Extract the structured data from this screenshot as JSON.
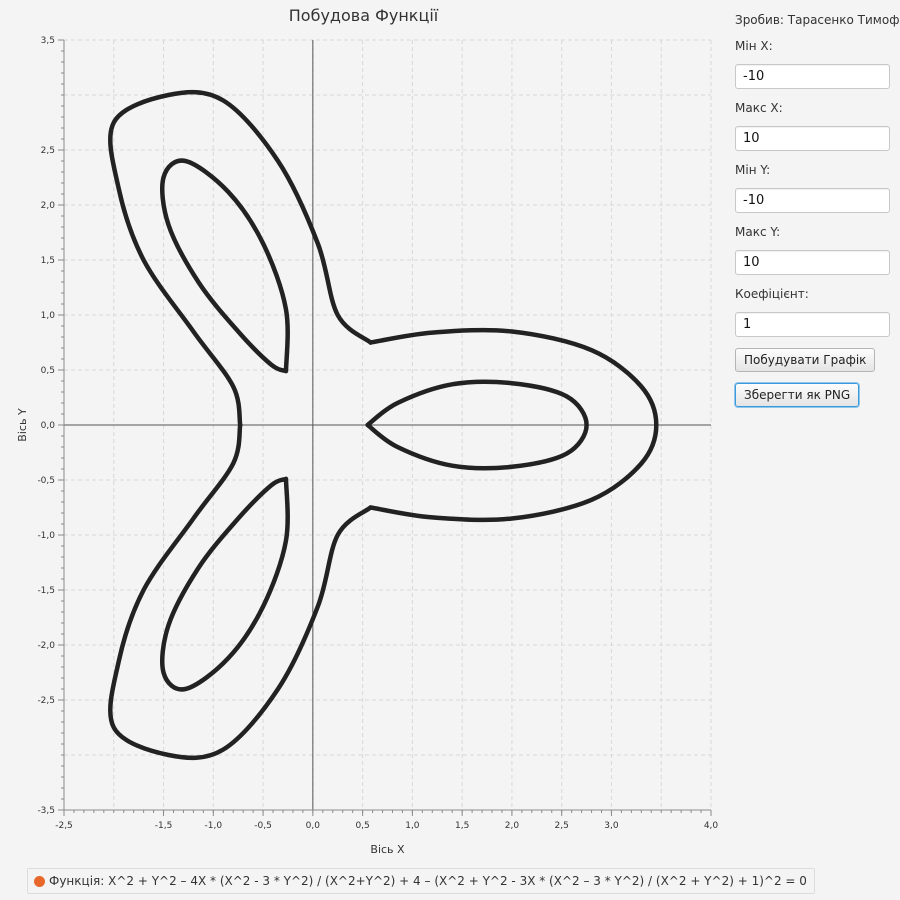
{
  "chart_data": {
    "type": "line",
    "title": "Побудова Функції",
    "xlabel": "Вісь X",
    "ylabel": "Вісь Y",
    "xlim": [
      -2.5,
      4.0
    ],
    "ylim": [
      -3.5,
      3.5
    ],
    "x_ticks": [
      "-2,5",
      "-1,5",
      "-1,0",
      "-0,5",
      "0,0",
      "0,5",
      "1,0",
      "1,5",
      "2,0",
      "2,5",
      "3,0",
      "4,0"
    ],
    "x_tick_values": [
      -2.5,
      -1.5,
      -1.0,
      -0.5,
      0.0,
      0.5,
      1.0,
      1.5,
      2.0,
      2.5,
      3.0,
      4.0
    ],
    "y_ticks": [
      "3,5",
      "2,5",
      "2,0",
      "1,5",
      "1,0",
      "0,5",
      "0,0",
      "-0,5",
      "-1,0",
      "-1,5",
      "-2,0",
      "-2,5",
      "-3,5"
    ],
    "y_tick_values": [
      3.5,
      2.5,
      2.0,
      1.5,
      1.0,
      0.5,
      0.0,
      -0.5,
      -1.0,
      -1.5,
      -2.0,
      -2.5,
      -3.5
    ],
    "grid": true,
    "legend_position": "bottom-left",
    "series": [
      {
        "name": "Функція: X^2 + Y^2 – 4X * (X^2 - 3 * Y^2) / (X^2+Y^2) + 4 – (X^2 + Y^2 - 3X * (X^2 – 3 * Y^2) / (X^2 + Y^2) + 1)^2 = 0",
        "color": "#222222",
        "legend_color": "#e8672a",
        "curves": [
          {
            "id": "outer-loop-right",
            "points": [
              [
                0.58,
                0.75
              ],
              [
                1.2,
                0.84
              ],
              [
                2.0,
                0.85
              ],
              [
                2.8,
                0.68
              ],
              [
                3.3,
                0.35
              ],
              [
                3.45,
                0.0
              ],
              [
                3.3,
                -0.35
              ],
              [
                2.8,
                -0.68
              ],
              [
                2.0,
                -0.85
              ],
              [
                1.2,
                -0.84
              ],
              [
                0.58,
                -0.75
              ]
            ]
          },
          {
            "id": "outer-loop-upper",
            "points": [
              [
                0.58,
                0.75
              ],
              [
                0.25,
                1.0
              ],
              [
                0.05,
                1.65
              ],
              [
                -0.35,
                2.4
              ],
              [
                -0.9,
                2.95
              ],
              [
                -1.45,
                3.0
              ],
              [
                -2.0,
                2.75
              ],
              [
                -1.95,
                2.15
              ],
              [
                -1.7,
                1.5
              ],
              [
                -1.2,
                0.85
              ],
              [
                -0.8,
                0.35
              ],
              [
                -0.73,
                0.0
              ]
            ]
          },
          {
            "id": "outer-loop-lower",
            "points": [
              [
                -0.73,
                0.0
              ],
              [
                -0.8,
                -0.35
              ],
              [
                -1.2,
                -0.85
              ],
              [
                -1.7,
                -1.5
              ],
              [
                -1.95,
                -2.15
              ],
              [
                -2.0,
                -2.75
              ],
              [
                -1.45,
                -3.0
              ],
              [
                -0.9,
                -2.95
              ],
              [
                -0.35,
                -2.4
              ],
              [
                0.05,
                -1.65
              ],
              [
                0.25,
                -1.0
              ],
              [
                0.58,
                -0.75
              ]
            ]
          },
          {
            "id": "inner-loop-right",
            "points": [
              [
                0.55,
                0.0
              ],
              [
                0.85,
                0.2
              ],
              [
                1.4,
                0.37
              ],
              [
                2.0,
                0.38
              ],
              [
                2.55,
                0.26
              ],
              [
                2.75,
                0.0
              ],
              [
                2.55,
                -0.26
              ],
              [
                2.0,
                -0.38
              ],
              [
                1.4,
                -0.37
              ],
              [
                0.85,
                -0.2
              ],
              [
                0.55,
                0.0
              ]
            ]
          },
          {
            "id": "inner-loop-upper",
            "points": [
              [
                -0.27,
                0.49
              ],
              [
                -0.27,
                1.05
              ],
              [
                -0.5,
                1.65
              ],
              [
                -0.85,
                2.12
              ],
              [
                -1.28,
                2.4
              ],
              [
                -1.5,
                2.25
              ],
              [
                -1.45,
                1.82
              ],
              [
                -1.15,
                1.3
              ],
              [
                -0.75,
                0.85
              ],
              [
                -0.42,
                0.55
              ],
              [
                -0.27,
                0.49
              ]
            ]
          },
          {
            "id": "inner-loop-lower",
            "points": [
              [
                -0.27,
                -0.49
              ],
              [
                -0.27,
                -1.05
              ],
              [
                -0.5,
                -1.65
              ],
              [
                -0.85,
                -2.12
              ],
              [
                -1.28,
                -2.4
              ],
              [
                -1.5,
                -2.25
              ],
              [
                -1.45,
                -1.82
              ],
              [
                -1.15,
                -1.3
              ],
              [
                -0.75,
                -0.85
              ],
              [
                -0.42,
                -0.55
              ],
              [
                -0.27,
                -0.49
              ]
            ]
          }
        ]
      }
    ]
  },
  "legend": {
    "label": "Функція: X^2 + Y^2 – 4X * (X^2 - 3 * Y^2) / (X^2+Y^2) + 4 – (X^2 + Y^2 - 3X * (X^2 – 3 * Y^2) / (X^2 + Y^2) + 1)^2 = 0",
    "dot_color": "#e8672a"
  },
  "panel": {
    "author": "Зробив: Тарасенко Тимофій",
    "min_x_label": "Мін X:",
    "min_x_value": "-10",
    "max_x_label": "Макс X:",
    "max_x_value": "10",
    "min_y_label": "Мін Y:",
    "min_y_value": "-10",
    "max_y_label": "Макс Y:",
    "max_y_value": "10",
    "coef_label": "Коефіцієнт:",
    "coef_value": "1",
    "plot_button": "Побудувати Графік",
    "save_button": "Зберегти як PNG"
  }
}
